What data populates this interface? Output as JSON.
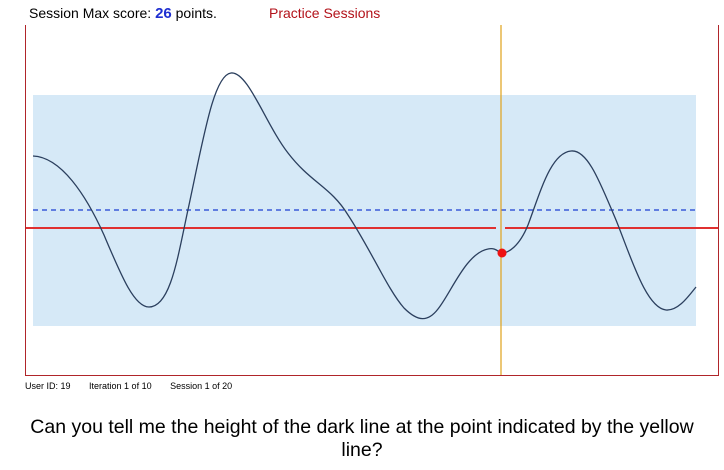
{
  "header": {
    "score_prefix": "Session Max score:",
    "score_value": "26",
    "score_suffix": "points.",
    "mode_label": "Practice Sessions"
  },
  "footer": {
    "user_id": "User ID: 19",
    "iteration": "Iteration 1 of 10",
    "session": "Session 1 of 20"
  },
  "question": "Can you tell me the height of the dark line at the point indicated by the yellow line?",
  "colors": {
    "band_fill": "#d6e9f7",
    "curve": "#2b3f5e",
    "dashed_line": "#3a5bd8",
    "red_line": "#e03030",
    "marker": "#ee1111",
    "cursor": "#e0a21a",
    "frame": "#b0252a"
  }
}
